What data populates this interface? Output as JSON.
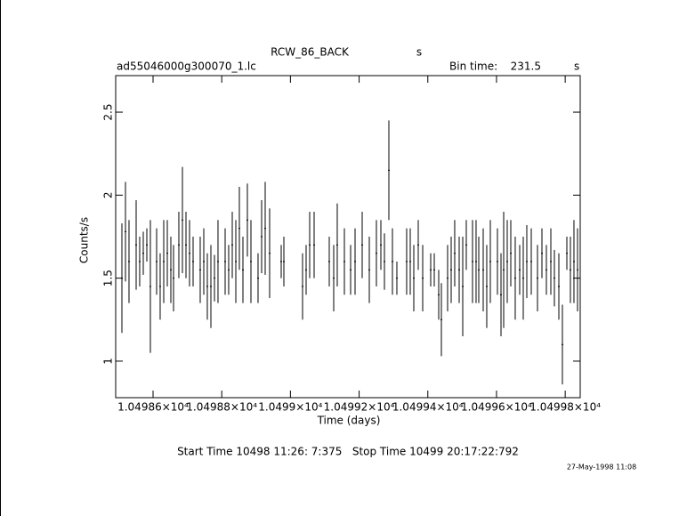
{
  "chart_data": {
    "type": "errorbar",
    "title": "RCW_86_BACK",
    "title_suffix": "s",
    "file": "ad55046000g300070_1.lc",
    "bin_time_label": "Bin time:",
    "bin_time": 231.5,
    "bin_time_unit": "s",
    "x_label": "Time (days)",
    "y_label": "Counts/s",
    "footer": "Start Time 10498 11:26: 7:375   Stop Time 10499 20:17:22:792",
    "timestamp": "27-May-1998 11:08",
    "color": "#000000",
    "xlim": [
      10498.4912,
      10499.8437
    ],
    "ylim": [
      0.78,
      2.72
    ],
    "xticks": [
      {
        "value": 10498.6,
        "label": "1.04986×10⁴"
      },
      {
        "value": 10498.8,
        "label": "1.04988×10⁴"
      },
      {
        "value": 10499,
        "label": "1.0499×10⁴"
      },
      {
        "value": 10499.2,
        "label": "1.04992×10⁴"
      },
      {
        "value": 10499.4,
        "label": "1.04994×10⁴"
      },
      {
        "value": 10499.6,
        "label": "1.04996×10⁴"
      },
      {
        "value": 10499.8,
        "label": "1.04998×10⁴"
      }
    ],
    "yticks": [
      1,
      1.5,
      2,
      2.5
    ],
    "x": [
      10498.5093,
      10498.5197,
      10498.53,
      10498.5508,
      10498.5611,
      10498.5715,
      10498.5819,
      10498.5922,
      10498.6104,
      10498.6207,
      10498.6311,
      10498.6415,
      10498.6518,
      10498.6596,
      10498.6751,
      10498.6855,
      10498.6959,
      10498.7062,
      10498.7166,
      10498.7373,
      10498.7477,
      10498.758,
      10498.7684,
      10498.7788,
      10498.7891,
      10498.8099,
      10498.8202,
      10498.8306,
      10498.841,
      10498.8513,
      10498.8617,
      10498.8746,
      10498.885,
      10498.9057,
      10498.9161,
      10498.9265,
      10498.9394,
      10498.9731,
      10498.9809,
      10499.0353,
      10499.0457,
      10499.056,
      10499.069,
      10499.113,
      10499.126,
      10499.1363,
      10499.1571,
      10499.1752,
      10499.1882,
      10499.2089,
      10499.2296,
      10499.2503,
      10499.2633,
      10499.2737,
      10499.2866,
      10499.297,
      10499.3099,
      10499.3384,
      10499.3488,
      10499.3592,
      10499.3721,
      10499.3851,
      10499.4084,
      10499.4188,
      10499.4317,
      10499.4395,
      10499.4576,
      10499.468,
      10499.4783,
      10499.4913,
      10499.5017,
      10499.512,
      10499.5302,
      10499.5405,
      10499.5483,
      10499.5613,
      10499.5716,
      10499.582,
      10499.6027,
      10499.6131,
      10499.6209,
      10499.6312,
      10499.6416,
      10499.6545,
      10499.6675,
      10499.6779,
      10499.6882,
      10499.7012,
      10499.7193,
      10499.7323,
      10499.7452,
      10499.7582,
      10499.7685,
      10499.7815,
      10499.7919,
      10499.8048,
      10499.8152,
      10499.8255,
      10499.8359
    ],
    "series": [
      {
        "values": [
          1.5,
          1.78,
          1.6,
          1.7,
          1.6,
          1.65,
          1.7,
          1.45,
          1.6,
          1.45,
          1.6,
          1.65,
          1.55,
          1.5,
          1.7,
          1.85,
          1.7,
          1.65,
          1.6,
          1.55,
          1.6,
          1.45,
          1.45,
          1.5,
          1.6,
          1.6,
          1.55,
          1.7,
          1.6,
          1.8,
          1.55,
          1.85,
          1.6,
          1.5,
          1.75,
          1.8,
          1.65,
          1.6,
          1.6,
          1.45,
          1.55,
          1.7,
          1.7,
          1.6,
          1.5,
          1.7,
          1.6,
          1.55,
          1.6,
          1.7,
          1.55,
          1.65,
          1.7,
          1.6,
          2.15,
          1.6,
          1.5,
          1.6,
          1.6,
          1.5,
          1.7,
          1.5,
          1.55,
          1.55,
          1.4,
          1.25,
          1.5,
          1.55,
          1.65,
          1.55,
          1.45,
          1.7,
          1.6,
          1.6,
          1.55,
          1.55,
          1.45,
          1.6,
          1.6,
          1.4,
          1.55,
          1.6,
          1.65,
          1.5,
          1.55,
          1.5,
          1.6,
          1.6,
          1.5,
          1.65,
          1.55,
          1.6,
          1.5,
          1.45,
          1.1,
          1.65,
          1.55,
          1.6,
          1.55
        ],
        "errors": [
          0.33,
          0.3,
          0.25,
          0.27,
          0.15,
          0.13,
          0.1,
          0.4,
          0.2,
          0.2,
          0.25,
          0.2,
          0.2,
          0.2,
          0.2,
          0.32,
          0.2,
          0.2,
          0.15,
          0.2,
          0.2,
          0.2,
          0.25,
          0.14,
          0.25,
          0.2,
          0.15,
          0.2,
          0.25,
          0.25,
          0.2,
          0.22,
          0.25,
          0.15,
          0.22,
          0.28,
          0.27,
          0.1,
          0.15,
          0.2,
          0.15,
          0.2,
          0.2,
          0.15,
          0.2,
          0.25,
          0.2,
          0.15,
          0.2,
          0.2,
          0.2,
          0.2,
          0.15,
          0.17,
          0.3,
          0.2,
          0.1,
          0.2,
          0.2,
          0.2,
          0.15,
          0.2,
          0.1,
          0.1,
          0.15,
          0.22,
          0.2,
          0.2,
          0.2,
          0.2,
          0.3,
          0.15,
          0.25,
          0.25,
          0.2,
          0.25,
          0.25,
          0.25,
          0.2,
          0.25,
          0.35,
          0.25,
          0.2,
          0.25,
          0.15,
          0.25,
          0.22,
          0.2,
          0.2,
          0.15,
          0.15,
          0.2,
          0.17,
          0.2,
          0.24,
          0.1,
          0.2,
          0.25,
          0.25
        ]
      }
    ]
  }
}
